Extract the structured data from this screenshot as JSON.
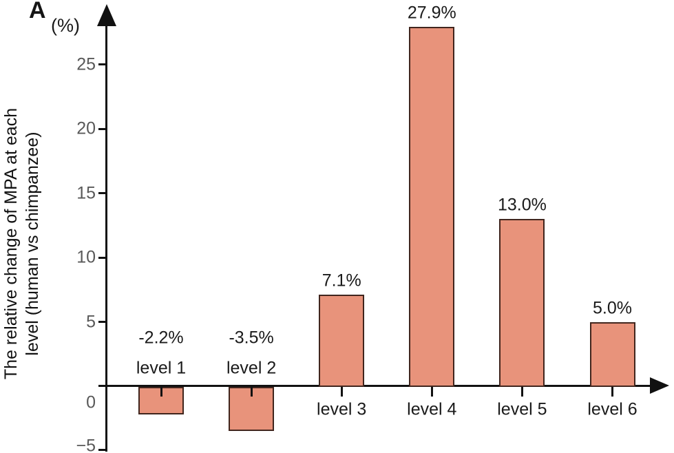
{
  "figure": {
    "panel_label": "A",
    "y_unit_label": "(%)",
    "y_axis_title_line1": "The relative change of MPA at each",
    "y_axis_title_line2": "level (human vs chimpanzee)"
  },
  "chart_data": {
    "type": "bar",
    "title": "The relative change of MPA at each level (human vs chimpanzee)",
    "xlabel": "",
    "ylabel": "The relative change of MPA at each level (human vs chimpanzee)",
    "y_unit": "(%)",
    "categories": [
      "level 1",
      "level 2",
      "level 3",
      "level 4",
      "level 5",
      "level 6"
    ],
    "values": [
      -2.2,
      -3.5,
      7.1,
      27.9,
      13.0,
      5.0
    ],
    "value_labels": [
      "-2.2%",
      "-3.5%",
      "7.1%",
      "27.9%",
      "13.0%",
      "5.0%"
    ],
    "y_ticks": [
      25,
      20,
      15,
      10,
      5,
      0,
      -5
    ],
    "ylim": [
      -5,
      29
    ],
    "grid": "off",
    "legend": "none",
    "bar_fill_color": "#E8937B",
    "bar_border_color": "#40251D",
    "axis_color": "#111111",
    "tick_label_color": "#595959"
  }
}
